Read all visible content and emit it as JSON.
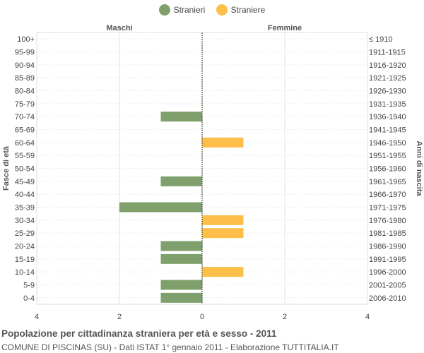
{
  "legend": [
    {
      "name": "Stranieri",
      "color": "#7fa06c"
    },
    {
      "name": "Straniere",
      "color": "#fdbf4a"
    }
  ],
  "footer": {
    "title": "Popolazione per cittadinanza straniera per età e sesso - 2011",
    "subtitle": "COMUNE DI PISCINAS (SU) - Dati ISTAT 1° gennaio 2011 - Elaborazione TUTTITALIA.IT"
  },
  "chart_data": {
    "type": "bar",
    "orientation": "horizontal-population-pyramid",
    "left_header": "Maschi",
    "right_header": "Femmine",
    "ylabel_left": "Fasce di età",
    "ylabel_right": "Anni di nascita",
    "xlim": [
      -4,
      4
    ],
    "x_ticks": [
      -4,
      -2,
      0,
      2,
      4
    ],
    "x_tick_labels": [
      "4",
      "2",
      "0",
      "2",
      "4"
    ],
    "grid": true,
    "legend_position": "top",
    "categories": [
      "100+",
      "95-99",
      "90-94",
      "85-89",
      "80-84",
      "75-79",
      "70-74",
      "65-69",
      "60-64",
      "55-59",
      "50-54",
      "45-49",
      "40-44",
      "35-39",
      "30-34",
      "25-29",
      "20-24",
      "15-19",
      "10-14",
      "5-9",
      "0-4"
    ],
    "birth_years": [
      "≤ 1910",
      "1911-1915",
      "1916-1920",
      "1921-1925",
      "1926-1930",
      "1931-1935",
      "1936-1940",
      "1941-1945",
      "1946-1950",
      "1951-1955",
      "1956-1960",
      "1961-1965",
      "1966-1970",
      "1971-1975",
      "1976-1980",
      "1981-1985",
      "1986-1990",
      "1991-1995",
      "1996-2000",
      "2001-2005",
      "2006-2010"
    ],
    "series": [
      {
        "name": "Stranieri",
        "color": "#7fa06c",
        "values": [
          0,
          0,
          0,
          0,
          0,
          0,
          1,
          0,
          0,
          0,
          0,
          1,
          0,
          2,
          0,
          0,
          1,
          1,
          0,
          1,
          1
        ]
      },
      {
        "name": "Straniere",
        "color": "#fdbf4a",
        "values": [
          0,
          0,
          0,
          0,
          0,
          0,
          0,
          0,
          1,
          0,
          0,
          0,
          0,
          0,
          1,
          1,
          0,
          0,
          1,
          0,
          0
        ]
      }
    ]
  }
}
